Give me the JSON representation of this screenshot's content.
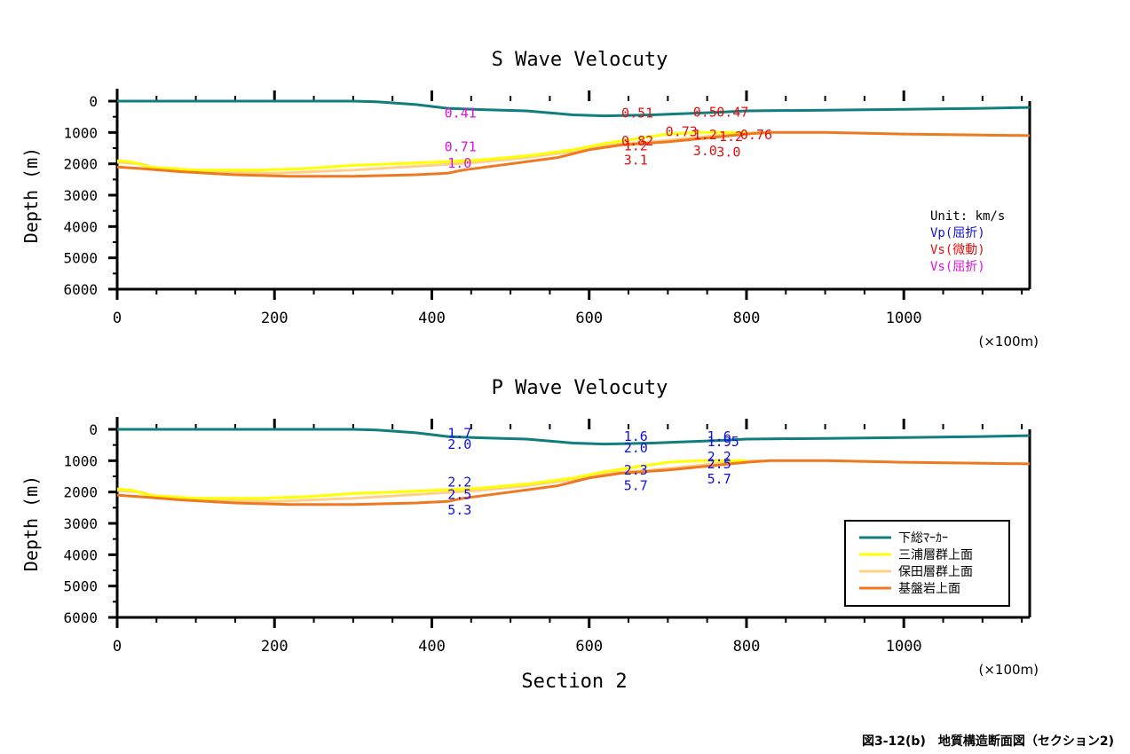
{
  "figure_caption": "図3-12(b)　地質構造断面図（セクション2)",
  "section_label": "Section 2",
  "chart_data": [
    {
      "type": "line",
      "title": "S Wave Velocuty",
      "xlabel": "",
      "ylabel": "Depth (m)",
      "xunit": "(×100m)",
      "xlim": [
        0,
        1160
      ],
      "ylim": [
        6000,
        0
      ],
      "x_ticks": [
        "0",
        "200",
        "400",
        "600",
        "800",
        "1000"
      ],
      "y_ticks": [
        "0",
        "1000",
        "2000",
        "3000",
        "4000",
        "5000",
        "6000"
      ],
      "unit_legend": {
        "unit": "Unit: km/s",
        "entries": [
          {
            "label": "Vp(屈折)",
            "color": "#1010e0"
          },
          {
            "label": "Vs(微動)",
            "color": "#e01010"
          },
          {
            "label": "Vs(屈折)",
            "color": "#e010e0"
          }
        ]
      },
      "series": [
        {
          "name": "下総ﾏｰｶｰ",
          "color": "#117d7d",
          "points": [
            [
              0,
              0
            ],
            [
              300,
              0
            ],
            [
              330,
              20
            ],
            [
              380,
              110
            ],
            [
              420,
              230
            ],
            [
              460,
              270
            ],
            [
              520,
              310
            ],
            [
              580,
              440
            ],
            [
              620,
              470
            ],
            [
              680,
              440
            ],
            [
              720,
              400
            ],
            [
              760,
              360
            ],
            [
              800,
              310
            ],
            [
              900,
              290
            ],
            [
              1000,
              260
            ],
            [
              1100,
              230
            ],
            [
              1160,
              200
            ]
          ]
        },
        {
          "name": "三浦層群上面",
          "color": "#ffff00",
          "points": [
            [
              0,
              1900
            ],
            [
              20,
              1950
            ],
            [
              40,
              2100
            ],
            [
              100,
              2200
            ],
            [
              180,
              2200
            ],
            [
              240,
              2150
            ],
            [
              300,
              2050
            ],
            [
              350,
              2000
            ],
            [
              400,
              1950
            ],
            [
              460,
              1880
            ],
            [
              520,
              1750
            ],
            [
              580,
              1550
            ],
            [
              620,
              1350
            ],
            [
              660,
              1200
            ],
            [
              700,
              1050
            ],
            [
              740,
              1000
            ],
            [
              780,
              1000
            ],
            [
              800,
              1000
            ]
          ]
        },
        {
          "name": "保田層群上面",
          "color": "#ffd08a",
          "points": [
            [
              0,
              1950
            ],
            [
              30,
              2000
            ],
            [
              50,
              2150
            ],
            [
              100,
              2250
            ],
            [
              200,
              2300
            ],
            [
              300,
              2200
            ],
            [
              400,
              2050
            ],
            [
              460,
              1950
            ],
            [
              520,
              1800
            ],
            [
              580,
              1600
            ],
            [
              620,
              1400
            ],
            [
              680,
              1300
            ],
            [
              720,
              1200
            ],
            [
              780,
              1050
            ],
            [
              820,
              1000
            ]
          ]
        },
        {
          "name": "基盤岩上面",
          "color": "#f07820",
          "points": [
            [
              0,
              2100
            ],
            [
              30,
              2150
            ],
            [
              80,
              2250
            ],
            [
              150,
              2350
            ],
            [
              220,
              2400
            ],
            [
              300,
              2400
            ],
            [
              380,
              2350
            ],
            [
              420,
              2300
            ],
            [
              440,
              2200
            ],
            [
              500,
              2000
            ],
            [
              560,
              1800
            ],
            [
              600,
              1550
            ],
            [
              640,
              1400
            ],
            [
              700,
              1300
            ],
            [
              760,
              1150
            ],
            [
              800,
              1050
            ],
            [
              830,
              1000
            ],
            [
              900,
              1000
            ],
            [
              1000,
              1050
            ],
            [
              1100,
              1080
            ],
            [
              1160,
              1100
            ]
          ]
        }
      ],
      "annotations": [
        {
          "text": "0.41",
          "x": 416,
          "y": 350,
          "color": "#e010e0"
        },
        {
          "text": "0.71",
          "x": 416,
          "y": 1430,
          "color": "#e010e0"
        },
        {
          "text": "1.0",
          "x": 420,
          "y": 1950,
          "color": "#e010e0"
        },
        {
          "text": "0.51",
          "x": 641,
          "y": 350,
          "color": "#e01010"
        },
        {
          "text": "0.82",
          "x": 641,
          "y": 1250,
          "color": "#e01010"
        },
        {
          "text": "1.2",
          "x": 644,
          "y": 1400,
          "color": "#e01010"
        },
        {
          "text": "3.1",
          "x": 644,
          "y": 1850,
          "color": "#e01010"
        },
        {
          "text": "0.73",
          "x": 697,
          "y": 950,
          "color": "#e01010"
        },
        {
          "text": "0.5",
          "x": 732,
          "y": 320,
          "color": "#e01010"
        },
        {
          "text": "0.47",
          "x": 762,
          "y": 320,
          "color": "#e01010"
        },
        {
          "text": "1.2",
          "x": 732,
          "y": 1050,
          "color": "#e01010"
        },
        {
          "text": "1.2",
          "x": 765,
          "y": 1100,
          "color": "#e01010"
        },
        {
          "text": "0.76",
          "x": 792,
          "y": 1050,
          "color": "#e01010"
        },
        {
          "text": "3.0",
          "x": 732,
          "y": 1550,
          "color": "#e01010"
        },
        {
          "text": "3.0",
          "x": 762,
          "y": 1600,
          "color": "#e01010"
        }
      ]
    },
    {
      "type": "line",
      "title": "P Wave Velocuty",
      "xlabel": "Section 2",
      "ylabel": "Depth (m)",
      "xunit": "(×100m)",
      "xlim": [
        0,
        1160
      ],
      "ylim": [
        6000,
        0
      ],
      "x_ticks": [
        "0",
        "200",
        "400",
        "600",
        "800",
        "1000"
      ],
      "y_ticks": [
        "0",
        "1000",
        "2000",
        "3000",
        "4000",
        "5000",
        "6000"
      ],
      "legend": {
        "position": "bottom-right",
        "entries": [
          {
            "label": "下総ﾏｰｶｰ",
            "color": "#117d7d"
          },
          {
            "label": "三浦層群上面",
            "color": "#ffff00"
          },
          {
            "label": "保田層群上面",
            "color": "#ffd08a"
          },
          {
            "label": "基盤岩上面",
            "color": "#f07820"
          }
        ]
      },
      "series": [
        {
          "name": "下総ﾏｰｶｰ",
          "color": "#117d7d",
          "points": [
            [
              0,
              0
            ],
            [
              300,
              0
            ],
            [
              330,
              20
            ],
            [
              380,
              110
            ],
            [
              420,
              230
            ],
            [
              460,
              270
            ],
            [
              520,
              310
            ],
            [
              580,
              440
            ],
            [
              620,
              470
            ],
            [
              680,
              440
            ],
            [
              720,
              400
            ],
            [
              760,
              360
            ],
            [
              800,
              310
            ],
            [
              900,
              290
            ],
            [
              1000,
              260
            ],
            [
              1100,
              230
            ],
            [
              1160,
              200
            ]
          ]
        },
        {
          "name": "三浦層群上面",
          "color": "#ffff00",
          "points": [
            [
              0,
              1900
            ],
            [
              20,
              1950
            ],
            [
              40,
              2100
            ],
            [
              100,
              2200
            ],
            [
              180,
              2200
            ],
            [
              240,
              2150
            ],
            [
              300,
              2050
            ],
            [
              350,
              2000
            ],
            [
              400,
              1950
            ],
            [
              460,
              1880
            ],
            [
              520,
              1750
            ],
            [
              580,
              1550
            ],
            [
              620,
              1350
            ],
            [
              660,
              1200
            ],
            [
              700,
              1050
            ],
            [
              740,
              1000
            ],
            [
              780,
              1000
            ],
            [
              800,
              1000
            ]
          ]
        },
        {
          "name": "保田層群上面",
          "color": "#ffd08a",
          "points": [
            [
              0,
              1950
            ],
            [
              30,
              2000
            ],
            [
              50,
              2150
            ],
            [
              100,
              2250
            ],
            [
              200,
              2300
            ],
            [
              300,
              2200
            ],
            [
              400,
              2050
            ],
            [
              460,
              1950
            ],
            [
              520,
              1800
            ],
            [
              580,
              1600
            ],
            [
              620,
              1400
            ],
            [
              680,
              1300
            ],
            [
              720,
              1200
            ],
            [
              780,
              1050
            ],
            [
              820,
              1000
            ]
          ]
        },
        {
          "name": "基盤岩上面",
          "color": "#f07820",
          "points": [
            [
              0,
              2100
            ],
            [
              30,
              2150
            ],
            [
              80,
              2250
            ],
            [
              150,
              2350
            ],
            [
              220,
              2400
            ],
            [
              300,
              2400
            ],
            [
              380,
              2350
            ],
            [
              420,
              2300
            ],
            [
              440,
              2200
            ],
            [
              500,
              2000
            ],
            [
              560,
              1800
            ],
            [
              600,
              1550
            ],
            [
              640,
              1400
            ],
            [
              700,
              1300
            ],
            [
              760,
              1150
            ],
            [
              800,
              1050
            ],
            [
              830,
              1000
            ],
            [
              900,
              1000
            ],
            [
              1000,
              1050
            ],
            [
              1100,
              1080
            ],
            [
              1160,
              1100
            ]
          ]
        }
      ],
      "annotations": [
        {
          "text": "1.7",
          "x": 420,
          "y": 100,
          "color": "#1010e0"
        },
        {
          "text": "2.0",
          "x": 420,
          "y": 450,
          "color": "#1010e0"
        },
        {
          "text": "2.2",
          "x": 420,
          "y": 1650,
          "color": "#1010e0"
        },
        {
          "text": "2.5",
          "x": 420,
          "y": 2050,
          "color": "#1010e0"
        },
        {
          "text": "5.3",
          "x": 420,
          "y": 2550,
          "color": "#1010e0"
        },
        {
          "text": "1.6",
          "x": 644,
          "y": 200,
          "color": "#1010e0"
        },
        {
          "text": "2.0",
          "x": 644,
          "y": 570,
          "color": "#1010e0"
        },
        {
          "text": "2.3",
          "x": 644,
          "y": 1270,
          "color": "#1010e0"
        },
        {
          "text": "5.7",
          "x": 644,
          "y": 1770,
          "color": "#1010e0"
        },
        {
          "text": "1.6",
          "x": 750,
          "y": 200,
          "color": "#1010e0"
        },
        {
          "text": "1.95",
          "x": 750,
          "y": 370,
          "color": "#1010e0"
        },
        {
          "text": "2.2",
          "x": 750,
          "y": 850,
          "color": "#1010e0"
        },
        {
          "text": "2.5",
          "x": 750,
          "y": 1070,
          "color": "#1010e0"
        },
        {
          "text": "5.7",
          "x": 750,
          "y": 1550,
          "color": "#1010e0"
        }
      ]
    }
  ]
}
